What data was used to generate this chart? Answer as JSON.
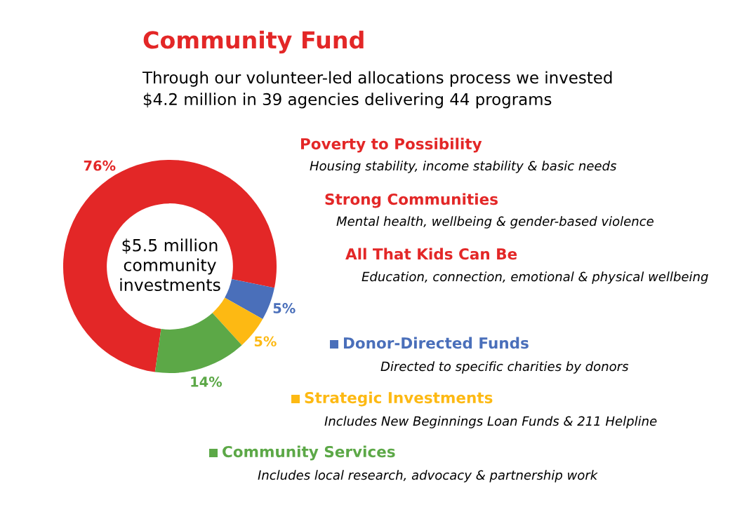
{
  "chart_data": {
    "type": "donut",
    "title": "Community Fund",
    "subtitle": "Through our volunteer-led allocations process we invested\n$4.2 million in 39 agencies delivering 44 programs",
    "categories": [
      null,
      "Donor-Directed Funds",
      "Strategic Investments",
      "Community Services"
    ],
    "values": [
      76,
      5,
      5,
      14
    ],
    "value_labels": [
      "76%",
      "5%",
      "5%",
      "14%"
    ],
    "colors": [
      "#e32727",
      "#4a6fba",
      "#fdb913",
      "#5ca847"
    ],
    "annotations": [
      "$5.5 million\ncommunity\ninvestments",
      "Poverty to Possibility",
      "Housing stability, income stability & basic needs",
      "Strong Communities",
      "Mental health, wellbeing & gender-based violence",
      "All That Kids Can Be",
      "Education, connection, emotional & physical wellbeing",
      "Directed to specific charities by donors",
      "Includes New Beginnings Loan Funds & 211 Helpline",
      "Includes local research, advocacy & partnership work"
    ],
    "legend": "right"
  }
}
